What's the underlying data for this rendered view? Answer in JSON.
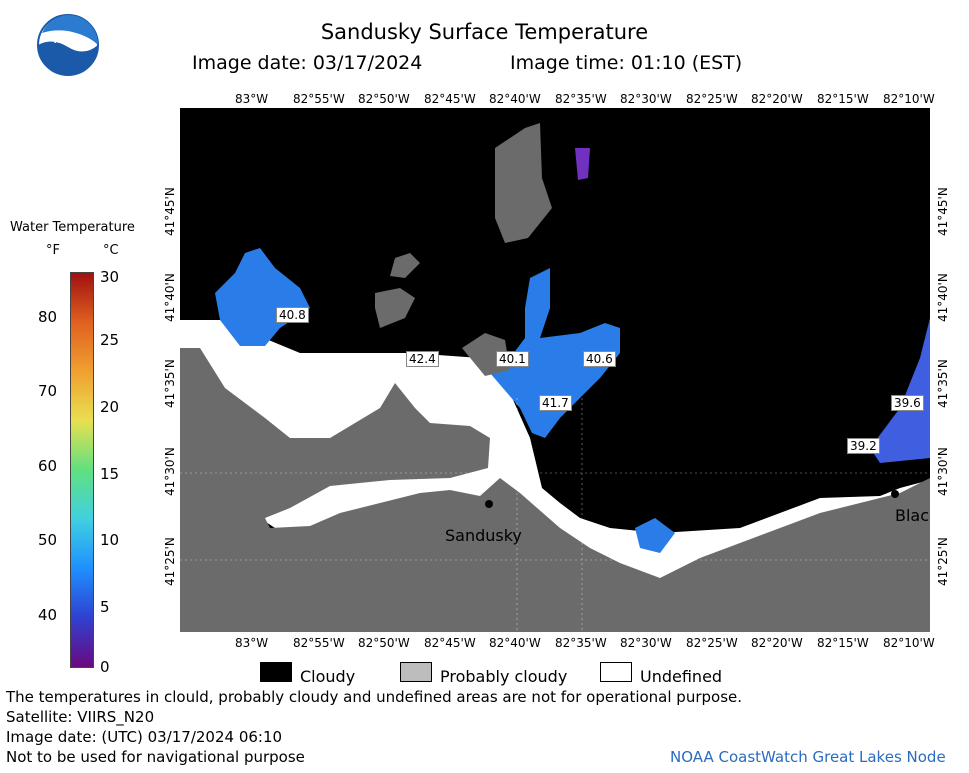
{
  "header": {
    "title": "Sandusky Surface Temperature",
    "image_date": "Image date: 03/17/2024",
    "image_time": "Image time: 01:10 (EST)"
  },
  "map": {
    "lon_ticks": [
      "83°W",
      "82°55'W",
      "82°50'W",
      "82°45'W",
      "82°40'W",
      "82°35'W",
      "82°30'W",
      "82°25'W",
      "82°20'W",
      "82°15'W",
      "82°10'W"
    ],
    "lat_ticks": [
      "41°45'N",
      "41°40'N",
      "41°35'N",
      "41°30'N",
      "41°25'N"
    ],
    "temp_labels": [
      "40.8",
      "42.4",
      "40.1",
      "40.6",
      "41.7",
      "39.6",
      "39.2"
    ],
    "cities": [
      "Sandusky",
      "Blac"
    ]
  },
  "colorbar": {
    "title": "Water Temperature",
    "unit_f": "°F",
    "unit_c": "°C",
    "f_ticks": [
      "80",
      "70",
      "60",
      "50",
      "40"
    ],
    "c_ticks": [
      "30",
      "25",
      "20",
      "15",
      "10",
      "5",
      "0"
    ],
    "colors": [
      "#6a0a80",
      "#3040d0",
      "#1e90ff",
      "#40d0e0",
      "#60e080",
      "#e8e050",
      "#f0a030",
      "#e06020",
      "#a01010"
    ]
  },
  "legend": {
    "cloudy": "Cloudy",
    "probably_cloudy": "Probably cloudy",
    "undefined": "Undefined"
  },
  "footer": {
    "disclaimer": "The temperatures in clould, probably cloudy and undefined areas are not for operational purpose.",
    "satellite": "Satellite: VIIRS_N20",
    "utc_date": "Image date: (UTC) 03/17/2024  06:10",
    "nav_warning": "Not to be used for navigational purpose",
    "credit": "NOAA CoastWatch Great Lakes Node"
  },
  "logo_text": "NOAA"
}
